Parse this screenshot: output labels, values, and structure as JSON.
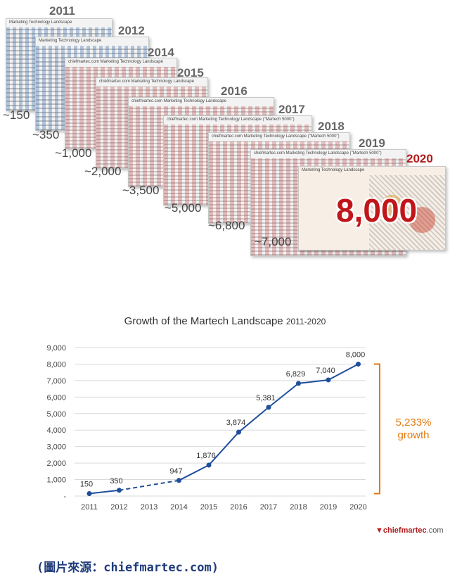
{
  "landscape": {
    "cards": [
      {
        "year": "2011",
        "count": "~150",
        "header": "Marketing Technology Landscape"
      },
      {
        "year": "2012",
        "count": "~350",
        "header": "Marketing Technology Landscape"
      },
      {
        "year": "2014",
        "count": "~1,000",
        "header": "chiefmartec.com Marketing Technology Landscape"
      },
      {
        "year": "2015",
        "count": "~2,000",
        "header": "chiefmartec.com Marketing Technology Landscape"
      },
      {
        "year": "2016",
        "count": "~3,500",
        "header": "chiefmartec.com Marketing Technology Landscape"
      },
      {
        "year": "2017",
        "count": "~5,000",
        "header": "chiefmartec.com Marketing Technology Landscape (\"Martech 5000\")"
      },
      {
        "year": "2018",
        "count": "~6,800",
        "header": "chiefmartec.com Marketing Technology Landscape (\"Martech 5000\")"
      },
      {
        "year": "2019",
        "count": "~7,000",
        "header": "chiefmartec.com Marketing Technology Landscape (\"Martech 5000\")"
      },
      {
        "year": "2020",
        "count": "",
        "header": "Marketing Technology Landscape"
      }
    ],
    "highlight": "8,000",
    "highlight_color": "#c0161b"
  },
  "chart_data": {
    "type": "line",
    "title": "Growth of the Martech Landscape",
    "subtitle": "2011-2020",
    "categories": [
      "2011",
      "2012",
      "2013",
      "2014",
      "2015",
      "2016",
      "2017",
      "2018",
      "2019",
      "2020"
    ],
    "values": [
      150,
      350,
      null,
      947,
      1876,
      3874,
      5381,
      6829,
      7040,
      8000
    ],
    "point_labels": [
      "150",
      "350",
      "",
      "947",
      "1,876",
      "3,874",
      "5,381",
      "6,829",
      "7,040",
      "8,000"
    ],
    "dashed_segment": [
      "2012",
      "2014"
    ],
    "ylim": [
      0,
      9000
    ],
    "yticks": [
      0,
      1000,
      2000,
      3000,
      4000,
      5000,
      6000,
      7000,
      8000,
      9000
    ],
    "ytick_labels": [
      "-",
      "1,000",
      "2,000",
      "3,000",
      "4,000",
      "5,000",
      "6,000",
      "7,000",
      "8,000",
      "9,000"
    ],
    "grid": "horizontal",
    "line_color": "#1f4e9c",
    "annotation": {
      "line1": "5,233%",
      "line2": "growth",
      "color": "#e07a10"
    }
  },
  "logo": {
    "brand": "chiefmartec",
    "domain": ".com"
  },
  "source": "(圖片來源：chiefmartec.com)"
}
